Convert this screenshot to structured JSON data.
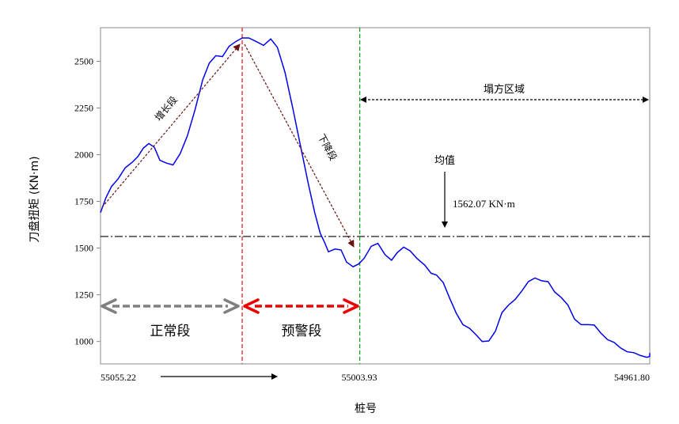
{
  "chart_data": {
    "type": "line",
    "ylabel": "刀盘扭矩 (KN·m)",
    "xlabel": "桩号",
    "ylim": [
      880,
      2680
    ],
    "yticks": [
      1000,
      1250,
      1500,
      1750,
      2000,
      2250,
      2500
    ],
    "ytick_labels": [
      "1000",
      "1250",
      "1500",
      "1750",
      "2000",
      "2250",
      "2500"
    ],
    "xlim": [
      0,
      1
    ],
    "xtick_labels": [
      "55055.22",
      "55003.93",
      "54961.80"
    ],
    "grid": false,
    "series": [
      {
        "color": "#0000ee",
        "points": [
          [
            0.0,
            1690
          ],
          [
            0.01,
            1770
          ],
          [
            0.02,
            1830
          ],
          [
            0.032,
            1870
          ],
          [
            0.045,
            1930
          ],
          [
            0.058,
            1960
          ],
          [
            0.068,
            1990
          ],
          [
            0.078,
            2035
          ],
          [
            0.088,
            2060
          ],
          [
            0.098,
            2040
          ],
          [
            0.108,
            1970
          ],
          [
            0.12,
            1955
          ],
          [
            0.132,
            1945
          ],
          [
            0.145,
            2005
          ],
          [
            0.158,
            2100
          ],
          [
            0.172,
            2240
          ],
          [
            0.186,
            2400
          ],
          [
            0.198,
            2490
          ],
          [
            0.21,
            2530
          ],
          [
            0.222,
            2525
          ],
          [
            0.234,
            2580
          ],
          [
            0.246,
            2605
          ],
          [
            0.258,
            2625
          ],
          [
            0.27,
            2625
          ],
          [
            0.284,
            2605
          ],
          [
            0.297,
            2585
          ],
          [
            0.31,
            2620
          ],
          [
            0.322,
            2575
          ],
          [
            0.336,
            2440
          ],
          [
            0.35,
            2250
          ],
          [
            0.364,
            2050
          ],
          [
            0.378,
            1850
          ],
          [
            0.39,
            1690
          ],
          [
            0.4,
            1580
          ],
          [
            0.408,
            1530
          ],
          [
            0.415,
            1480
          ],
          [
            0.427,
            1495
          ],
          [
            0.438,
            1490
          ],
          [
            0.448,
            1425
          ],
          [
            0.46,
            1400
          ],
          [
            0.47,
            1415
          ],
          [
            0.48,
            1445
          ],
          [
            0.493,
            1510
          ],
          [
            0.505,
            1525
          ],
          [
            0.518,
            1465
          ],
          [
            0.53,
            1435
          ],
          [
            0.54,
            1475
          ],
          [
            0.552,
            1505
          ],
          [
            0.564,
            1485
          ],
          [
            0.576,
            1445
          ],
          [
            0.59,
            1410
          ],
          [
            0.602,
            1365
          ],
          [
            0.612,
            1355
          ],
          [
            0.624,
            1315
          ],
          [
            0.636,
            1230
          ],
          [
            0.648,
            1150
          ],
          [
            0.66,
            1090
          ],
          [
            0.672,
            1070
          ],
          [
            0.684,
            1035
          ],
          [
            0.695,
            1000
          ],
          [
            0.707,
            1003
          ],
          [
            0.719,
            1055
          ],
          [
            0.731,
            1155
          ],
          [
            0.743,
            1195
          ],
          [
            0.755,
            1225
          ],
          [
            0.767,
            1270
          ],
          [
            0.779,
            1320
          ],
          [
            0.791,
            1340
          ],
          [
            0.803,
            1325
          ],
          [
            0.815,
            1320
          ],
          [
            0.827,
            1265
          ],
          [
            0.839,
            1235
          ],
          [
            0.851,
            1195
          ],
          [
            0.863,
            1120
          ],
          [
            0.875,
            1090
          ],
          [
            0.887,
            1090
          ],
          [
            0.899,
            1088
          ],
          [
            0.911,
            1045
          ],
          [
            0.923,
            1010
          ],
          [
            0.935,
            995
          ],
          [
            0.947,
            965
          ],
          [
            0.959,
            945
          ],
          [
            0.971,
            940
          ],
          [
            0.983,
            925
          ],
          [
            0.995,
            915
          ],
          [
            1.005,
            920
          ],
          [
            1.018,
            938
          ]
        ]
      }
    ],
    "mean_value": 1562.07,
    "red_divider_x": 0.258,
    "green_divider_x": 0.472,
    "annotations": {
      "growth": "增长段",
      "decline": "下降段",
      "normal": "正常段",
      "warning": "预警段",
      "collapse": "塌方区域",
      "mean_label": "均值",
      "mean_value_text": "1562.07  KN·m"
    },
    "colors": {
      "line": "#0000ee",
      "red_divider": "#ee2020",
      "green_divider": "#119911",
      "normal_arrow": "#808080",
      "warning_arrow": "#ee0000",
      "trend_arrows": "#6b1010"
    }
  }
}
